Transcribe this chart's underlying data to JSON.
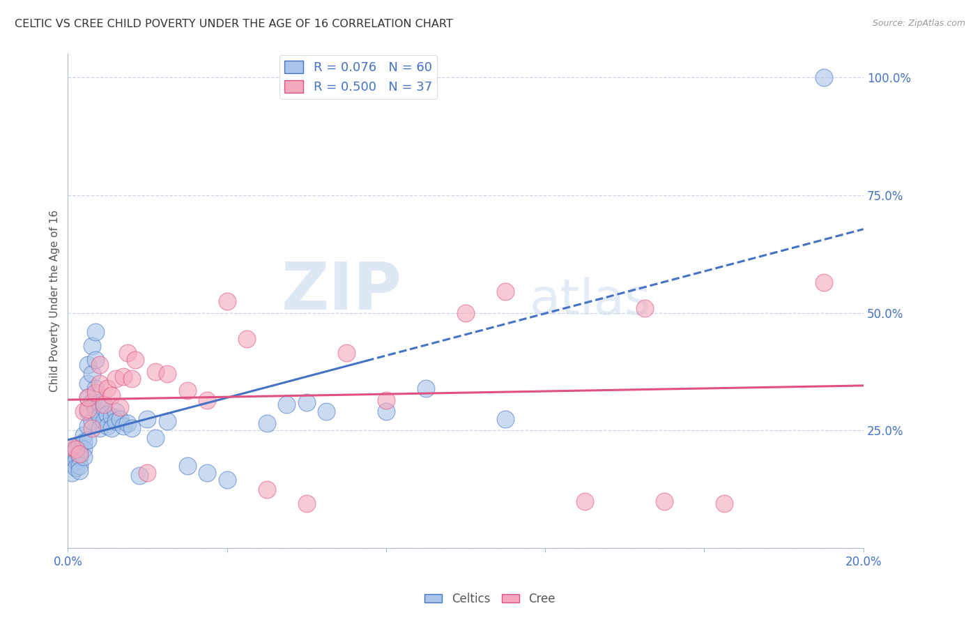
{
  "title": "CELTIC VS CREE CHILD POVERTY UNDER THE AGE OF 16 CORRELATION CHART",
  "source": "Source: ZipAtlas.com",
  "ylabel": "Child Poverty Under the Age of 16",
  "xlim": [
    0.0,
    0.2
  ],
  "ylim": [
    0.0,
    1.05
  ],
  "xticks": [
    0.0,
    0.04,
    0.08,
    0.12,
    0.16,
    0.2
  ],
  "xticklabels": [
    "0.0%",
    "",
    "",
    "",
    "",
    "20.0%"
  ],
  "yticks": [
    0.0,
    0.25,
    0.5,
    0.75,
    1.0
  ],
  "yticklabels": [
    "",
    "25.0%",
    "50.0%",
    "75.0%",
    "100.0%"
  ],
  "celtics_color": "#a8c4e8",
  "cree_color": "#f4a8bc",
  "celtics_line_color": "#4472c4",
  "cree_line_color": "#e05080",
  "watermark_zip": "ZIP",
  "watermark_atlas": "atlas",
  "legend_r_celtics": "R = 0.076",
  "legend_n_celtics": "N = 60",
  "legend_r_cree": "R = 0.500",
  "legend_n_cree": "N = 37",
  "celtics_x": [
    0.001,
    0.001,
    0.001,
    0.002,
    0.002,
    0.002,
    0.002,
    0.003,
    0.003,
    0.003,
    0.003,
    0.003,
    0.004,
    0.004,
    0.004,
    0.004,
    0.005,
    0.005,
    0.005,
    0.005,
    0.005,
    0.005,
    0.006,
    0.006,
    0.006,
    0.006,
    0.007,
    0.007,
    0.007,
    0.007,
    0.008,
    0.008,
    0.008,
    0.009,
    0.009,
    0.01,
    0.01,
    0.011,
    0.011,
    0.012,
    0.012,
    0.013,
    0.014,
    0.015,
    0.016,
    0.018,
    0.02,
    0.022,
    0.025,
    0.03,
    0.035,
    0.04,
    0.05,
    0.055,
    0.06,
    0.065,
    0.08,
    0.09,
    0.11,
    0.19
  ],
  "celtics_y": [
    0.2,
    0.18,
    0.16,
    0.215,
    0.195,
    0.185,
    0.17,
    0.22,
    0.205,
    0.195,
    0.175,
    0.165,
    0.24,
    0.225,
    0.21,
    0.195,
    0.39,
    0.35,
    0.32,
    0.29,
    0.26,
    0.23,
    0.43,
    0.37,
    0.31,
    0.27,
    0.46,
    0.4,
    0.34,
    0.295,
    0.31,
    0.28,
    0.255,
    0.3,
    0.27,
    0.285,
    0.26,
    0.28,
    0.255,
    0.29,
    0.27,
    0.275,
    0.26,
    0.265,
    0.255,
    0.155,
    0.275,
    0.235,
    0.27,
    0.175,
    0.16,
    0.145,
    0.265,
    0.305,
    0.31,
    0.29,
    0.29,
    0.34,
    0.275,
    1.0
  ],
  "cree_x": [
    0.001,
    0.002,
    0.003,
    0.004,
    0.005,
    0.005,
    0.006,
    0.007,
    0.008,
    0.008,
    0.009,
    0.01,
    0.011,
    0.012,
    0.013,
    0.014,
    0.015,
    0.016,
    0.017,
    0.02,
    0.022,
    0.025,
    0.03,
    0.035,
    0.04,
    0.045,
    0.05,
    0.06,
    0.07,
    0.08,
    0.1,
    0.11,
    0.13,
    0.145,
    0.15,
    0.165,
    0.19
  ],
  "cree_y": [
    0.215,
    0.21,
    0.2,
    0.29,
    0.295,
    0.32,
    0.255,
    0.33,
    0.39,
    0.35,
    0.305,
    0.34,
    0.325,
    0.36,
    0.3,
    0.365,
    0.415,
    0.36,
    0.4,
    0.16,
    0.375,
    0.37,
    0.335,
    0.315,
    0.525,
    0.445,
    0.125,
    0.095,
    0.415,
    0.315,
    0.5,
    0.545,
    0.1,
    0.51,
    0.1,
    0.095,
    0.565
  ],
  "background_color": "#ffffff",
  "grid_color": "#c8d4e8",
  "title_color": "#333333",
  "tick_color": "#4472c4"
}
